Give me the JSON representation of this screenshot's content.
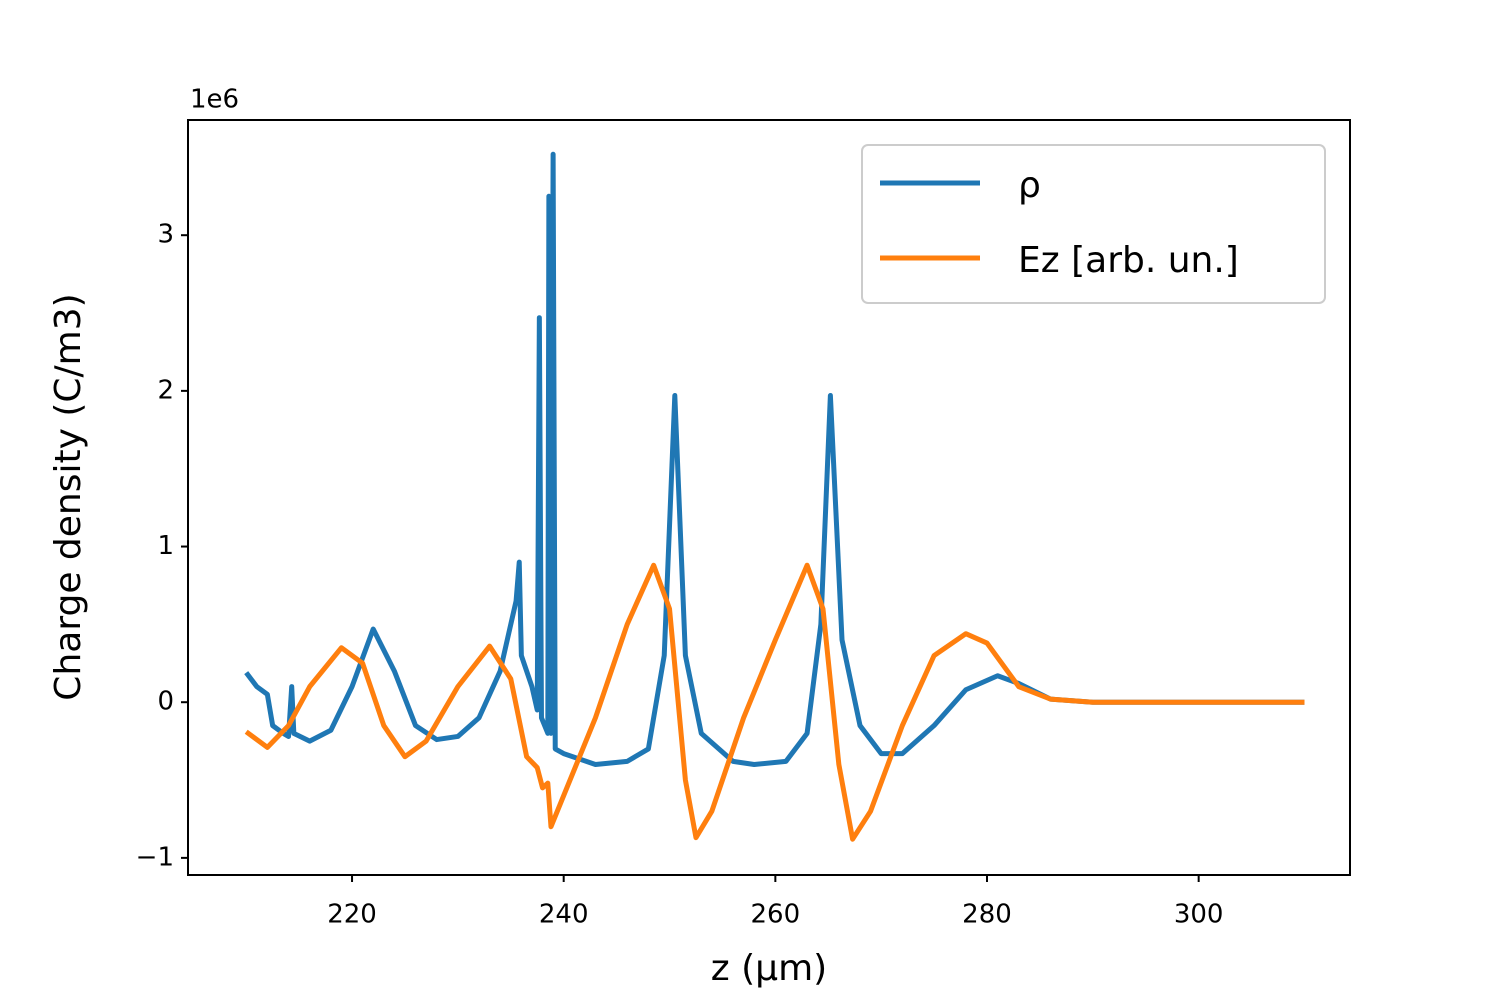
{
  "chart_data": {
    "type": "line",
    "xlabel": "z (μm)",
    "ylabel": "Charge density (C/m3)",
    "y_offset_label": "1e6",
    "xlim": [
      204.5,
      314.3
    ],
    "ylim": [
      -1.11,
      3.74
    ],
    "xticks": [
      220,
      240,
      260,
      280,
      300
    ],
    "yticks": [
      {
        "value": -1,
        "label": "−1"
      },
      0,
      1,
      2,
      3
    ],
    "grid": false,
    "legend": "upper right",
    "series": [
      {
        "name": "ρ",
        "color": "#1f77b4",
        "x": [
          210,
          211,
          212,
          212.5,
          213.5,
          214,
          214.3,
          214.5,
          216,
          218,
          220,
          222,
          224,
          226,
          228,
          230,
          232,
          234,
          235.5,
          235.8,
          236,
          237,
          237.5,
          237.7,
          237.9,
          238.5,
          238.6,
          238.8,
          239,
          239.2,
          240,
          243,
          246,
          248,
          249.5,
          250.5,
          251.5,
          253,
          256,
          258,
          261,
          263,
          264.3,
          265.2,
          266.3,
          268,
          270,
          272,
          275,
          278,
          281,
          283,
          286,
          290,
          310
        ],
        "values": [
          0.19,
          0.1,
          0.05,
          -0.15,
          -0.2,
          -0.22,
          0.1,
          -0.2,
          -0.25,
          -0.18,
          0.1,
          0.47,
          0.2,
          -0.15,
          -0.24,
          -0.22,
          -0.1,
          0.2,
          0.65,
          0.9,
          0.3,
          0.1,
          -0.05,
          2.47,
          -0.1,
          -0.2,
          3.25,
          -0.2,
          3.52,
          -0.3,
          -0.33,
          -0.4,
          -0.38,
          -0.3,
          0.3,
          1.97,
          0.3,
          -0.2,
          -0.38,
          -0.4,
          -0.38,
          -0.2,
          0.5,
          1.97,
          0.4,
          -0.15,
          -0.33,
          -0.33,
          -0.15,
          0.08,
          0.17,
          0.12,
          0.02,
          0,
          0
        ]
      },
      {
        "name": "Ez [arb. un.]",
        "color": "#ff7f0e",
        "x": [
          210,
          212,
          214,
          216,
          219,
          221,
          223,
          225,
          227,
          230,
          233,
          235,
          236.5,
          237.5,
          238,
          238.5,
          238.8,
          240,
          243,
          246,
          248.5,
          250,
          251.5,
          252.5,
          254,
          257,
          260,
          263,
          264.5,
          266,
          267.3,
          269,
          272,
          275,
          278,
          280,
          283,
          286,
          290,
          310
        ],
        "values": [
          -0.19,
          -0.29,
          -0.15,
          0.1,
          0.35,
          0.25,
          -0.15,
          -0.35,
          -0.25,
          0.1,
          0.36,
          0.15,
          -0.35,
          -0.42,
          -0.55,
          -0.52,
          -0.8,
          -0.6,
          -0.1,
          0.5,
          0.88,
          0.6,
          -0.5,
          -0.87,
          -0.7,
          -0.1,
          0.4,
          0.88,
          0.6,
          -0.4,
          -0.88,
          -0.7,
          -0.15,
          0.3,
          0.44,
          0.38,
          0.1,
          0.02,
          0,
          0
        ]
      }
    ]
  }
}
